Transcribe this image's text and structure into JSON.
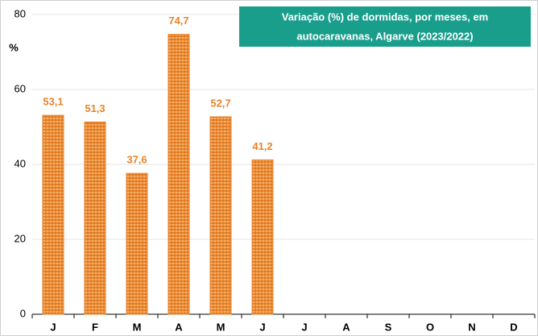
{
  "chart_data": {
    "type": "bar",
    "title": [
      "Variação (%) de dormidas, por meses, em",
      "autocaravanas, Algarve (2023/2022)"
    ],
    "y_label": "%",
    "categories": [
      "J",
      "F",
      "M",
      "A",
      "M",
      "J",
      "J",
      "A",
      "S",
      "O",
      "N",
      "D"
    ],
    "values": [
      53.1,
      51.3,
      37.6,
      74.7,
      52.7,
      41.2,
      null,
      null,
      null,
      null,
      null,
      null
    ],
    "value_labels": [
      "53,1",
      "51,3",
      "37,6",
      "74,7",
      "52,7",
      "41,2",
      null,
      null,
      null,
      null,
      null,
      null
    ],
    "color": "#e8832a",
    "ylim": [
      0,
      80
    ],
    "yticks": [
      0,
      20,
      40,
      60,
      80
    ],
    "grid": true
  }
}
